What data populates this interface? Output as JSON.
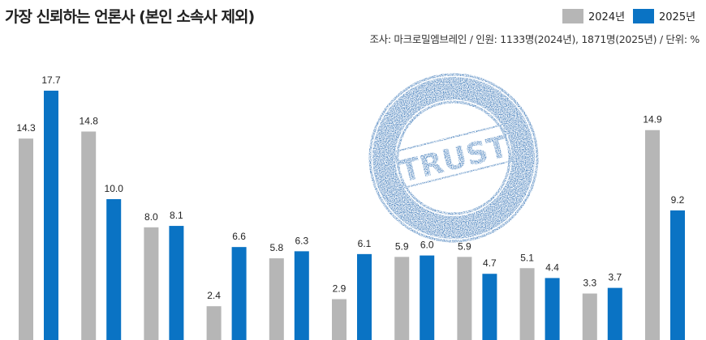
{
  "chart_data": {
    "type": "bar",
    "title": "가장 신뢰하는 언론사 (본인 소속사 제외)",
    "source": "조사: 마크로밀엠브레인 / 인원: 1133명(2024년), 1871명(2025년) / 단위: %",
    "categories": [
      "",
      "",
      "",
      "",
      "",
      "",
      "",
      "",
      "",
      "",
      ""
    ],
    "series": [
      {
        "name": "2024년",
        "color": "#b6b6b6",
        "values": [
          14.3,
          14.8,
          8.0,
          2.4,
          5.8,
          2.9,
          5.9,
          5.9,
          5.1,
          3.3,
          14.9
        ]
      },
      {
        "name": "2025년",
        "color": "#0a73c4",
        "values": [
          17.7,
          10.0,
          8.1,
          6.6,
          6.3,
          6.1,
          6.0,
          4.7,
          4.4,
          3.7,
          9.2
        ]
      }
    ],
    "ylim": [
      0,
      20
    ],
    "grid": false,
    "legend_position": "top-right",
    "stamp_text": "TRUST",
    "stamp_color": "#2f6fb3"
  }
}
